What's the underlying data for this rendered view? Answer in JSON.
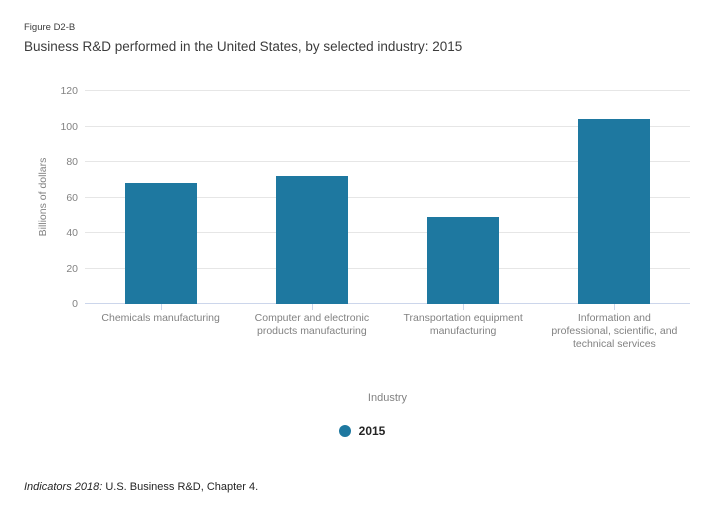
{
  "header": {
    "figure_label": "Figure D2-B",
    "title": "Business R&D performed in the United States, by selected industry: 2015"
  },
  "chart_data": {
    "type": "bar",
    "title": "Business R&D performed in the United States, by selected industry: 2015",
    "categories": [
      "Chemicals manufacturing",
      "Computer and electronic products manufacturing",
      "Transportation equipment manufacturing",
      "Information and professional, scientific, and technical services"
    ],
    "categories_wrapped": [
      [
        "Chemicals manufacturing"
      ],
      [
        "Computer and electronic",
        "products manufacturing"
      ],
      [
        "Transportation equipment",
        "manufacturing"
      ],
      [
        "Information and",
        "professional, scientific, and",
        "technical services"
      ]
    ],
    "series_name": "2015",
    "values": [
      68,
      72,
      49,
      104
    ],
    "xlabel": "Industry",
    "ylabel": "Billions of dollars",
    "ylim": [
      0,
      120
    ],
    "yticks": [
      0,
      20,
      40,
      60,
      80,
      100,
      120
    ],
    "grid": true,
    "legend_position": "bottom",
    "bar_color": "#1e78a0"
  },
  "legend": {
    "label": "2015"
  },
  "footer": {
    "source_italic": "Indicators 2018:",
    "source_rest": " U.S. Business R&D, Chapter 4."
  }
}
